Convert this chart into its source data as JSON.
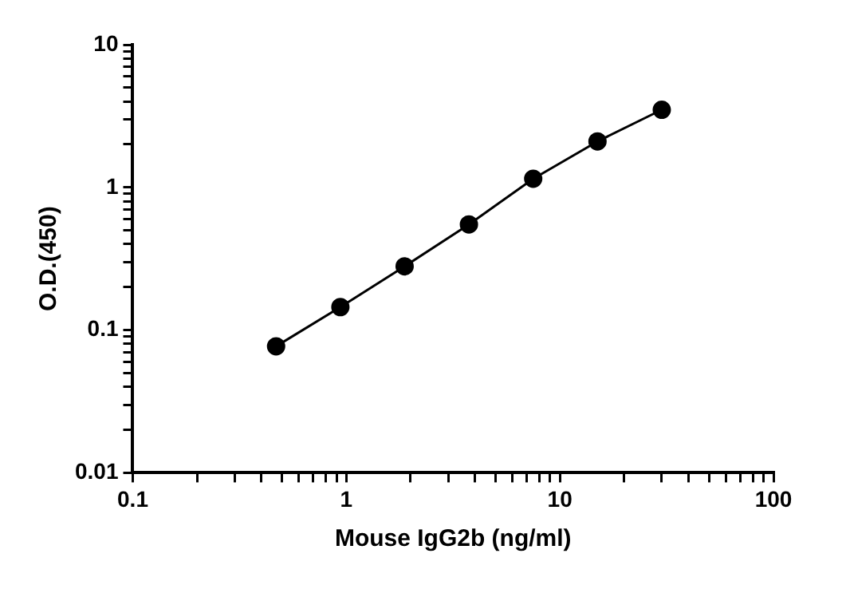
{
  "chart_data": {
    "type": "line",
    "xlabel": "Mouse IgG2b (ng/ml)",
    "ylabel": "O.D.(450)",
    "x": [
      0.469,
      0.938,
      1.875,
      3.75,
      7.5,
      15,
      30
    ],
    "series": [
      {
        "color": "#000000",
        "values": [
          0.077,
          0.145,
          0.28,
          0.55,
          1.15,
          2.1,
          3.5
        ]
      }
    ],
    "log": "xy",
    "marker": "circle",
    "line_style": "solid",
    "grid": false,
    "legend": false,
    "xlim": [
      0.1,
      100
    ],
    "xticks": [
      0.1,
      {
        "value": 0.2,
        "label": null
      },
      {
        "value": 0.3,
        "label": null
      },
      {
        "value": 0.4,
        "label": null
      },
      {
        "value": 0.5,
        "label": null
      },
      {
        "value": 0.6,
        "label": null
      },
      {
        "value": 0.7,
        "label": null
      },
      {
        "value": 0.8,
        "label": null
      },
      {
        "value": 0.9,
        "label": null
      },
      1,
      {
        "value": 2,
        "label": null
      },
      {
        "value": 3,
        "label": null
      },
      {
        "value": 4,
        "label": null
      },
      {
        "value": 5,
        "label": null
      },
      {
        "value": 6,
        "label": null
      },
      {
        "value": 7,
        "label": null
      },
      {
        "value": 8,
        "label": null
      },
      {
        "value": 9,
        "label": null
      },
      10,
      {
        "value": 20,
        "label": null
      },
      {
        "value": 30,
        "label": null
      },
      {
        "value": 40,
        "label": null
      },
      {
        "value": 50,
        "label": null
      },
      {
        "value": 60,
        "label": null
      },
      {
        "value": 70,
        "label": null
      },
      {
        "value": 80,
        "label": null
      },
      {
        "value": 90,
        "label": null
      },
      100
    ],
    "ylim": [
      0.01,
      10
    ],
    "yticks": [
      0.01,
      {
        "value": 0.02,
        "label": null
      },
      {
        "value": 0.03,
        "label": null
      },
      {
        "value": 0.04,
        "label": null
      },
      {
        "value": 0.05,
        "label": null
      },
      {
        "value": 0.06,
        "label": null
      },
      {
        "value": 0.07,
        "label": null
      },
      {
        "value": 0.08,
        "label": null
      },
      {
        "value": 0.09,
        "label": null
      },
      0.1,
      {
        "value": 0.2,
        "label": null
      },
      {
        "value": 0.3,
        "label": null
      },
      {
        "value": 0.4,
        "label": null
      },
      {
        "value": 0.5,
        "label": null
      },
      {
        "value": 0.6,
        "label": null
      },
      {
        "value": 0.7,
        "label": null
      },
      {
        "value": 0.8,
        "label": null
      },
      {
        "value": 0.9,
        "label": null
      },
      1,
      {
        "value": 2,
        "label": null
      },
      {
        "value": 3,
        "label": null
      },
      {
        "value": 4,
        "label": null
      },
      {
        "value": 5,
        "label": null
      },
      {
        "value": 6,
        "label": null
      },
      {
        "value": 7,
        "label": null
      },
      {
        "value": 8,
        "label": null
      },
      {
        "value": 9,
        "label": null
      },
      10
    ]
  }
}
